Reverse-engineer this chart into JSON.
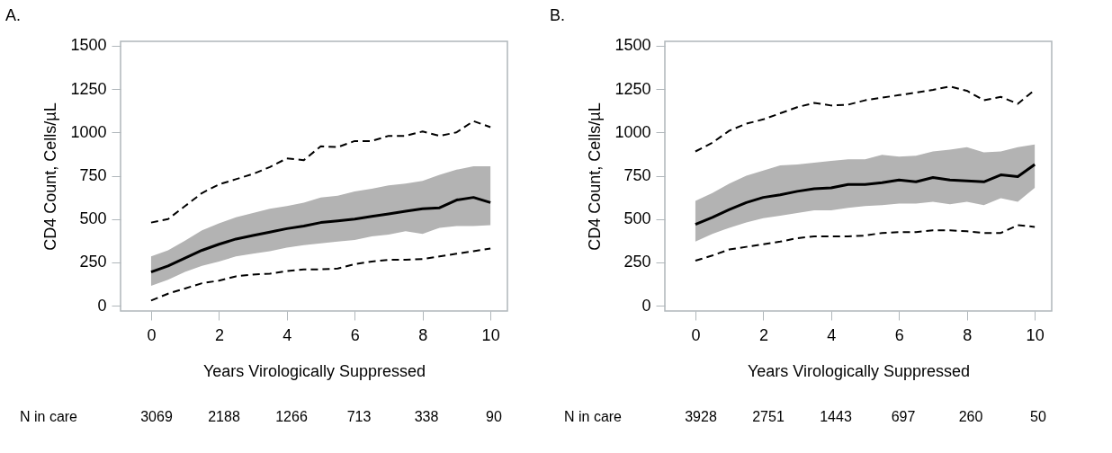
{
  "chart_data": [
    {
      "type": "line",
      "title": "A.",
      "xlabel": "Years Virologically Suppressed",
      "ylabel": "CD4 Count, Cells/µL",
      "x": [
        0,
        0.5,
        1,
        1.5,
        2,
        2.5,
        3,
        3.5,
        4,
        4.5,
        5,
        5.5,
        6,
        6.5,
        7,
        7.5,
        8,
        8.5,
        9,
        9.5,
        10
      ],
      "xlim": [
        -0.9,
        10.5
      ],
      "xticks": [
        0,
        2,
        4,
        6,
        8,
        10
      ],
      "ylim": [
        -30,
        1525
      ],
      "yticks": [
        0,
        250,
        500,
        750,
        1000,
        1250,
        1500
      ],
      "grid": false,
      "annotations": [
        "N in care",
        "3069",
        "2188",
        "1266",
        "713",
        "338",
        "90"
      ],
      "series": [
        {
          "color": "#000000",
          "line_style": "solid",
          "values": [
            195,
            230,
            275,
            320,
            355,
            385,
            405,
            425,
            445,
            460,
            480,
            490,
            500,
            515,
            530,
            545,
            560,
            565,
            610,
            625,
            595
          ],
          "lower": [
            115,
            150,
            195,
            230,
            255,
            285,
            300,
            315,
            335,
            350,
            360,
            370,
            380,
            400,
            410,
            430,
            415,
            450,
            460,
            460,
            465
          ],
          "upper": [
            285,
            320,
            375,
            435,
            475,
            510,
            535,
            560,
            575,
            595,
            625,
            635,
            660,
            675,
            695,
            705,
            720,
            755,
            785,
            805,
            805
          ]
        },
        {
          "color": "#000000",
          "line_style": "dashed",
          "values": [
            480,
            500,
            575,
            650,
            700,
            730,
            760,
            800,
            850,
            840,
            920,
            915,
            950,
            950,
            980,
            980,
            1005,
            980,
            1000,
            1065,
            1030
          ]
        },
        {
          "color": "#000000",
          "line_style": "dashed",
          "values": [
            30,
            70,
            100,
            130,
            145,
            170,
            180,
            185,
            200,
            210,
            210,
            215,
            240,
            255,
            265,
            265,
            270,
            285,
            300,
            315,
            330
          ]
        }
      ]
    },
    {
      "type": "line",
      "title": "B.",
      "xlabel": "Years Virologically Suppressed",
      "ylabel": "CD4 Count, Cells/µL",
      "x": [
        0,
        0.5,
        1,
        1.5,
        2,
        2.5,
        3,
        3.5,
        4,
        4.5,
        5,
        5.5,
        6,
        6.5,
        7,
        7.5,
        8,
        8.5,
        9,
        9.5,
        10
      ],
      "xlim": [
        -0.9,
        10.5
      ],
      "xticks": [
        0,
        2,
        4,
        6,
        8,
        10
      ],
      "ylim": [
        -30,
        1525
      ],
      "yticks": [
        0,
        250,
        500,
        750,
        1000,
        1250,
        1500
      ],
      "grid": false,
      "annotations": [
        "N in care",
        "3928",
        "2751",
        "1443",
        "697",
        "260",
        "50"
      ],
      "series": [
        {
          "color": "#000000",
          "line_style": "solid",
          "values": [
            470,
            510,
            555,
            595,
            625,
            640,
            660,
            675,
            680,
            700,
            700,
            710,
            725,
            715,
            740,
            725,
            720,
            715,
            755,
            745,
            815
          ],
          "lower": [
            370,
            415,
            450,
            480,
            505,
            520,
            535,
            550,
            550,
            565,
            575,
            580,
            590,
            590,
            600,
            585,
            600,
            580,
            620,
            600,
            680
          ],
          "upper": [
            605,
            650,
            705,
            750,
            780,
            810,
            815,
            825,
            835,
            845,
            845,
            870,
            860,
            865,
            890,
            900,
            915,
            885,
            890,
            915,
            930
          ]
        },
        {
          "color": "#000000",
          "line_style": "dashed",
          "values": [
            890,
            940,
            1010,
            1050,
            1075,
            1110,
            1145,
            1170,
            1155,
            1160,
            1185,
            1200,
            1215,
            1230,
            1245,
            1265,
            1240,
            1185,
            1205,
            1165,
            1245
          ]
        },
        {
          "color": "#000000",
          "line_style": "dashed",
          "values": [
            260,
            290,
            325,
            340,
            355,
            370,
            390,
            400,
            400,
            400,
            405,
            420,
            425,
            425,
            435,
            435,
            430,
            420,
            420,
            465,
            455
          ]
        }
      ]
    }
  ]
}
